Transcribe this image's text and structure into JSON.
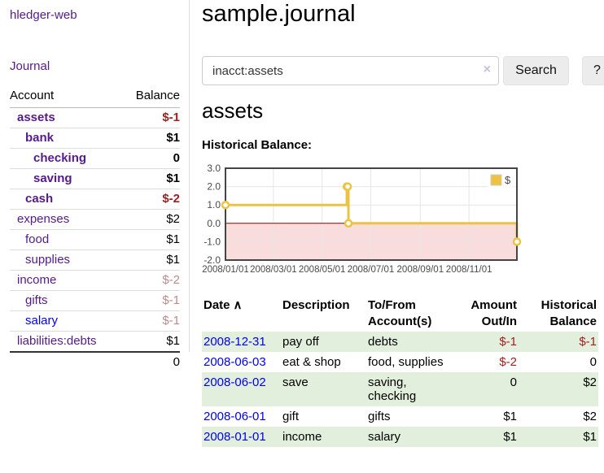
{
  "sidebar": {
    "app_title": "hledger-web",
    "nav": {
      "journal_label": "Journal"
    },
    "accounts_table": {
      "headers": {
        "account": "Account",
        "balance": "Balance"
      },
      "rows": [
        {
          "name": "assets",
          "balance": "$-1",
          "level": 1,
          "bold": true,
          "balance_class": "neg"
        },
        {
          "name": "bank",
          "balance": "$1",
          "level": 2,
          "bold": true,
          "balance_class": ""
        },
        {
          "name": "checking",
          "balance": "0",
          "level": 3,
          "bold": true,
          "balance_class": ""
        },
        {
          "name": "saving",
          "balance": "$1",
          "level": 3,
          "bold": true,
          "balance_class": ""
        },
        {
          "name": "cash",
          "balance": "$-2",
          "level": 2,
          "bold": true,
          "balance_class": "neg"
        },
        {
          "name": "expenses",
          "balance": "$2",
          "level": 1,
          "bold": false,
          "balance_class": ""
        },
        {
          "name": "food",
          "balance": "$1",
          "level": 2,
          "bold": false,
          "balance_class": ""
        },
        {
          "name": "supplies",
          "balance": "$1",
          "level": 2,
          "bold": false,
          "balance_class": ""
        },
        {
          "name": "income",
          "balance": "$-2",
          "level": 1,
          "bold": false,
          "balance_class": "neg-muted"
        },
        {
          "name": "gifts",
          "balance": "$-1",
          "level": 2,
          "bold": false,
          "balance_class": "neg-muted"
        },
        {
          "name": "salary",
          "balance": "$-1",
          "level": 2,
          "bold": false,
          "balance_class": "neg-muted",
          "link_color": "blue"
        },
        {
          "name": "liabilities:debts",
          "balance": "$1",
          "level": 1,
          "bold": false,
          "balance_class": ""
        }
      ],
      "total": "0"
    }
  },
  "main": {
    "title": "sample.journal",
    "search": {
      "value": "inacct:assets",
      "clear_icon": "×",
      "button_label": "Search",
      "help_label": "?"
    },
    "section_title": "assets",
    "chart_label": "Historical Balance:"
  },
  "chart_data": {
    "type": "line",
    "step": true,
    "title": "Historical Balance",
    "series": [
      {
        "name": "$",
        "color": "#EDC240",
        "points": [
          [
            "2008-01-01",
            1
          ],
          [
            "2008-06-01",
            2
          ],
          [
            "2008-06-02",
            2
          ],
          [
            "2008-06-03",
            0
          ],
          [
            "2008-12-31",
            -1
          ]
        ]
      }
    ],
    "x_range": [
      "2008-01-01",
      "2008-12-31"
    ],
    "ylim": [
      -2,
      3
    ],
    "y_ticks": [
      {
        "value": 3,
        "label": "3.0"
      },
      {
        "value": 2,
        "label": "2.0"
      },
      {
        "value": 1,
        "label": "1.0"
      },
      {
        "value": 0,
        "label": "0.0"
      },
      {
        "value": -1,
        "label": "-1.0"
      },
      {
        "value": -2,
        "label": "-2.0"
      }
    ],
    "x_ticks": [
      {
        "date": "2008-01-01",
        "label": "2008/01/01"
      },
      {
        "date": "2008-03-01",
        "label": "2008/03/01"
      },
      {
        "date": "2008-05-01",
        "label": "2008/05/01"
      },
      {
        "date": "2008-07-01",
        "label": "2008/07/01"
      },
      {
        "date": "2008-09-01",
        "label": "2008/09/01"
      },
      {
        "date": "2008-11-01",
        "label": "2008/11/01"
      }
    ],
    "legend": {
      "label": "$",
      "position": "top-right"
    },
    "grid": true,
    "colors": {
      "negative_region": "#f9dcdc",
      "zero_line": "#8b0000",
      "grid": "#e6e6e6",
      "border": "#454545",
      "tick_label": "#4a4a4a"
    }
  },
  "journal": {
    "headers": {
      "date": "Date",
      "sort_icon": "∧",
      "description": "Description",
      "accounts": "To/From Account(s)",
      "amount": "Amount Out/In",
      "balance": "Historical Balance"
    },
    "rows": [
      {
        "date": "2008-12-31",
        "description": "pay off",
        "accounts": "debts",
        "amount": "$-1",
        "amount_negative": true,
        "balance": "$-1",
        "balance_negative": true
      },
      {
        "date": "2008-06-03",
        "description": "eat & shop",
        "accounts": "food, supplies",
        "amount": "$-2",
        "amount_negative": true,
        "balance": "0",
        "balance_negative": false
      },
      {
        "date": "2008-06-02",
        "description": "save",
        "accounts": "saving, checking",
        "amount": "0",
        "amount_negative": false,
        "balance": "$2",
        "balance_negative": false
      },
      {
        "date": "2008-06-01",
        "description": "gift",
        "accounts": "gifts",
        "amount": "$1",
        "amount_negative": false,
        "balance": "$2",
        "balance_negative": false
      },
      {
        "date": "2008-01-01",
        "description": "income",
        "accounts": "salary",
        "amount": "$1",
        "amount_negative": false,
        "balance": "$1",
        "balance_negative": false
      }
    ]
  }
}
